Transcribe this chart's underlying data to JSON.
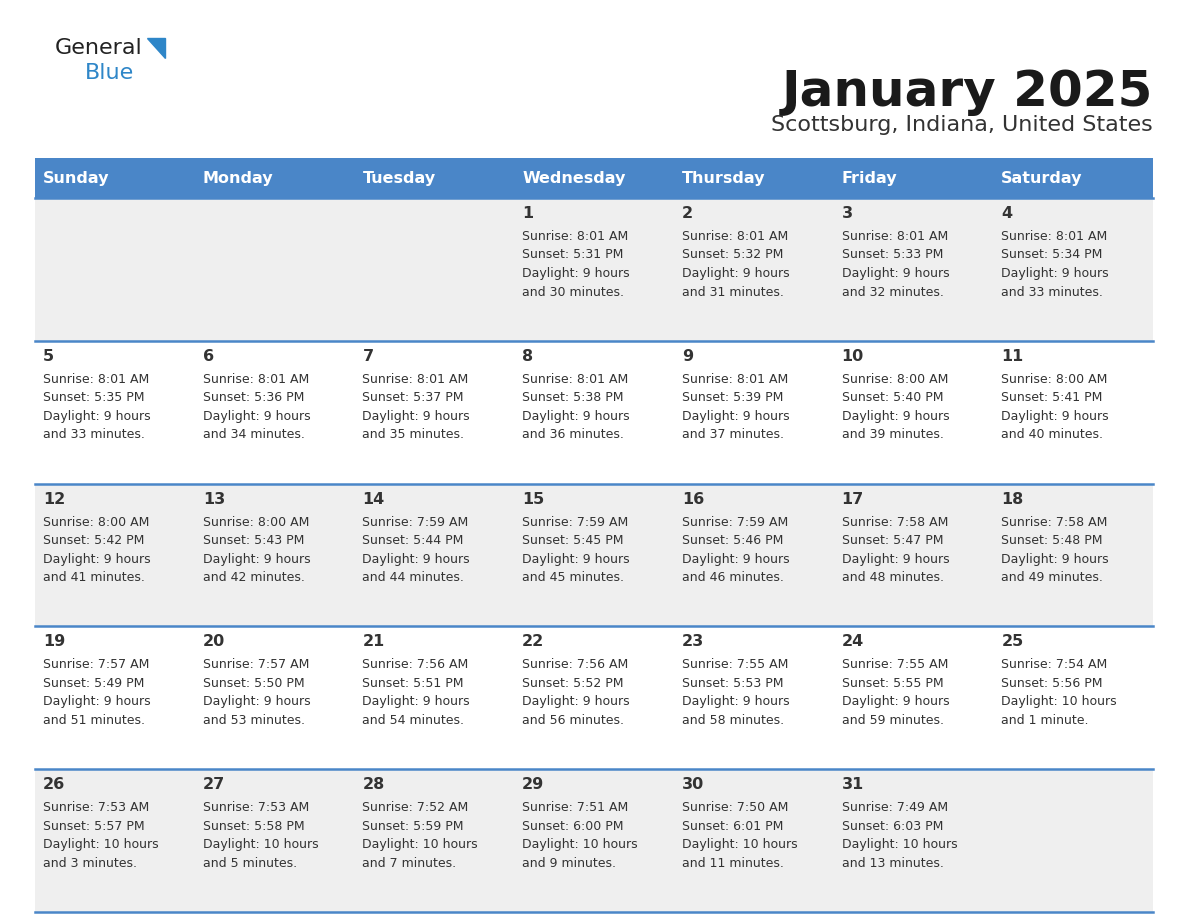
{
  "title": "January 2025",
  "subtitle": "Scottsburg, Indiana, United States",
  "days_of_week": [
    "Sunday",
    "Monday",
    "Tuesday",
    "Wednesday",
    "Thursday",
    "Friday",
    "Saturday"
  ],
  "header_bg": "#4a86c8",
  "header_text": "#ffffff",
  "row_bg_odd": "#efefef",
  "row_bg_even": "#ffffff",
  "separator_color": "#4a86c8",
  "text_color": "#333333",
  "logo_general_color": "#222222",
  "logo_blue_color": "#2e86c8",
  "logo_triangle_color": "#2e86c8",
  "calendar_data": [
    [
      {
        "day": null,
        "info": null
      },
      {
        "day": null,
        "info": null
      },
      {
        "day": null,
        "info": null
      },
      {
        "day": 1,
        "info": "Sunrise: 8:01 AM\nSunset: 5:31 PM\nDaylight: 9 hours\nand 30 minutes."
      },
      {
        "day": 2,
        "info": "Sunrise: 8:01 AM\nSunset: 5:32 PM\nDaylight: 9 hours\nand 31 minutes."
      },
      {
        "day": 3,
        "info": "Sunrise: 8:01 AM\nSunset: 5:33 PM\nDaylight: 9 hours\nand 32 minutes."
      },
      {
        "day": 4,
        "info": "Sunrise: 8:01 AM\nSunset: 5:34 PM\nDaylight: 9 hours\nand 33 minutes."
      }
    ],
    [
      {
        "day": 5,
        "info": "Sunrise: 8:01 AM\nSunset: 5:35 PM\nDaylight: 9 hours\nand 33 minutes."
      },
      {
        "day": 6,
        "info": "Sunrise: 8:01 AM\nSunset: 5:36 PM\nDaylight: 9 hours\nand 34 minutes."
      },
      {
        "day": 7,
        "info": "Sunrise: 8:01 AM\nSunset: 5:37 PM\nDaylight: 9 hours\nand 35 minutes."
      },
      {
        "day": 8,
        "info": "Sunrise: 8:01 AM\nSunset: 5:38 PM\nDaylight: 9 hours\nand 36 minutes."
      },
      {
        "day": 9,
        "info": "Sunrise: 8:01 AM\nSunset: 5:39 PM\nDaylight: 9 hours\nand 37 minutes."
      },
      {
        "day": 10,
        "info": "Sunrise: 8:00 AM\nSunset: 5:40 PM\nDaylight: 9 hours\nand 39 minutes."
      },
      {
        "day": 11,
        "info": "Sunrise: 8:00 AM\nSunset: 5:41 PM\nDaylight: 9 hours\nand 40 minutes."
      }
    ],
    [
      {
        "day": 12,
        "info": "Sunrise: 8:00 AM\nSunset: 5:42 PM\nDaylight: 9 hours\nand 41 minutes."
      },
      {
        "day": 13,
        "info": "Sunrise: 8:00 AM\nSunset: 5:43 PM\nDaylight: 9 hours\nand 42 minutes."
      },
      {
        "day": 14,
        "info": "Sunrise: 7:59 AM\nSunset: 5:44 PM\nDaylight: 9 hours\nand 44 minutes."
      },
      {
        "day": 15,
        "info": "Sunrise: 7:59 AM\nSunset: 5:45 PM\nDaylight: 9 hours\nand 45 minutes."
      },
      {
        "day": 16,
        "info": "Sunrise: 7:59 AM\nSunset: 5:46 PM\nDaylight: 9 hours\nand 46 minutes."
      },
      {
        "day": 17,
        "info": "Sunrise: 7:58 AM\nSunset: 5:47 PM\nDaylight: 9 hours\nand 48 minutes."
      },
      {
        "day": 18,
        "info": "Sunrise: 7:58 AM\nSunset: 5:48 PM\nDaylight: 9 hours\nand 49 minutes."
      }
    ],
    [
      {
        "day": 19,
        "info": "Sunrise: 7:57 AM\nSunset: 5:49 PM\nDaylight: 9 hours\nand 51 minutes."
      },
      {
        "day": 20,
        "info": "Sunrise: 7:57 AM\nSunset: 5:50 PM\nDaylight: 9 hours\nand 53 minutes."
      },
      {
        "day": 21,
        "info": "Sunrise: 7:56 AM\nSunset: 5:51 PM\nDaylight: 9 hours\nand 54 minutes."
      },
      {
        "day": 22,
        "info": "Sunrise: 7:56 AM\nSunset: 5:52 PM\nDaylight: 9 hours\nand 56 minutes."
      },
      {
        "day": 23,
        "info": "Sunrise: 7:55 AM\nSunset: 5:53 PM\nDaylight: 9 hours\nand 58 minutes."
      },
      {
        "day": 24,
        "info": "Sunrise: 7:55 AM\nSunset: 5:55 PM\nDaylight: 9 hours\nand 59 minutes."
      },
      {
        "day": 25,
        "info": "Sunrise: 7:54 AM\nSunset: 5:56 PM\nDaylight: 10 hours\nand 1 minute."
      }
    ],
    [
      {
        "day": 26,
        "info": "Sunrise: 7:53 AM\nSunset: 5:57 PM\nDaylight: 10 hours\nand 3 minutes."
      },
      {
        "day": 27,
        "info": "Sunrise: 7:53 AM\nSunset: 5:58 PM\nDaylight: 10 hours\nand 5 minutes."
      },
      {
        "day": 28,
        "info": "Sunrise: 7:52 AM\nSunset: 5:59 PM\nDaylight: 10 hours\nand 7 minutes."
      },
      {
        "day": 29,
        "info": "Sunrise: 7:51 AM\nSunset: 6:00 PM\nDaylight: 10 hours\nand 9 minutes."
      },
      {
        "day": 30,
        "info": "Sunrise: 7:50 AM\nSunset: 6:01 PM\nDaylight: 10 hours\nand 11 minutes."
      },
      {
        "day": 31,
        "info": "Sunrise: 7:49 AM\nSunset: 6:03 PM\nDaylight: 10 hours\nand 13 minutes."
      },
      {
        "day": null,
        "info": null
      }
    ]
  ]
}
